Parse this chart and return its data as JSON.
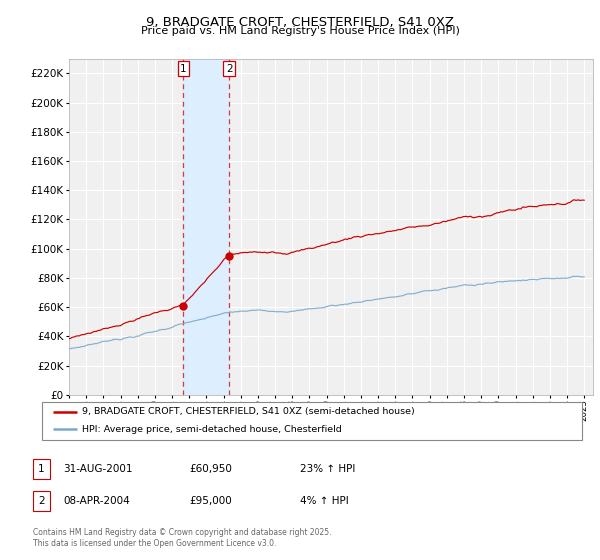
{
  "title": "9, BRADGATE CROFT, CHESTERFIELD, S41 0XZ",
  "subtitle": "Price paid vs. HM Land Registry's House Price Index (HPI)",
  "ylim": [
    0,
    230000
  ],
  "yticks": [
    0,
    20000,
    40000,
    60000,
    80000,
    100000,
    120000,
    140000,
    160000,
    180000,
    200000,
    220000
  ],
  "line1_color": "#cc0000",
  "line2_color": "#7aa8cc",
  "shading_color": "#ddeeff",
  "t1": 2001.667,
  "t2": 2004.333,
  "purchase1_price": 60950,
  "purchase2_price": 95000,
  "legend1": "9, BRADGATE CROFT, CHESTERFIELD, S41 0XZ (semi-detached house)",
  "legend2": "HPI: Average price, semi-detached house, Chesterfield",
  "table_rows": [
    {
      "num": "1",
      "date": "31-AUG-2001",
      "price": "£60,950",
      "change": "23% ↑ HPI"
    },
    {
      "num": "2",
      "date": "08-APR-2004",
      "price": "£95,000",
      "change": "4% ↑ HPI"
    }
  ],
  "footnote": "Contains HM Land Registry data © Crown copyright and database right 2025.\nThis data is licensed under the Open Government Licence v3.0.",
  "background_color": "#ffffff",
  "plot_bg_color": "#f0f0f0"
}
